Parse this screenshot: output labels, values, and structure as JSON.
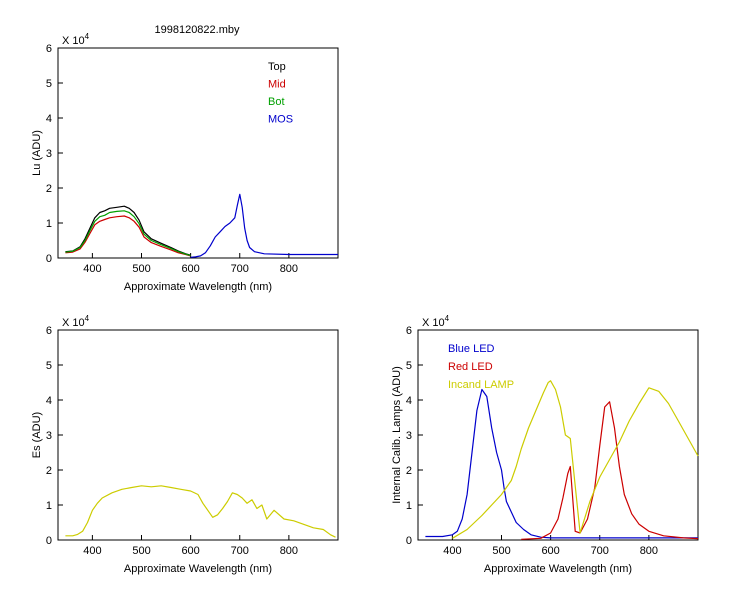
{
  "figure": {
    "title": "1998120822.mby",
    "exponent_base": "X 10",
    "exponent_power": "4"
  },
  "colors": {
    "top": "#000000",
    "mid": "#cc0000",
    "bot": "#00a000",
    "mos": "#0000cc",
    "blue_led": "#0000cc",
    "red_led": "#cc0000",
    "incand": "#cccc00",
    "es": "#cccc00"
  },
  "chart_data": [
    {
      "id": "lu",
      "type": "line",
      "xlabel": "Approximate Wavelength (nm)",
      "ylabel": "Lu (ADU)",
      "xlim": [
        330,
        900
      ],
      "ylim": [
        0,
        6
      ],
      "y_scale_label": "x10^4",
      "xticks": [
        400,
        500,
        600,
        700,
        800
      ],
      "yticks": [
        0,
        1,
        2,
        3,
        4,
        5,
        6
      ],
      "legend": "top-right",
      "series": [
        {
          "name": "Top",
          "color_key": "top",
          "x": [
            345,
            360,
            375,
            385,
            395,
            405,
            415,
            425,
            435,
            450,
            465,
            475,
            485,
            495,
            505,
            520,
            540,
            560,
            575,
            590,
            600
          ],
          "y": [
            0.18,
            0.2,
            0.32,
            0.55,
            0.85,
            1.15,
            1.3,
            1.35,
            1.42,
            1.45,
            1.48,
            1.42,
            1.3,
            1.08,
            0.75,
            0.55,
            0.42,
            0.3,
            0.2,
            0.12,
            0.08
          ]
        },
        {
          "name": "Mid",
          "color_key": "mid",
          "x": [
            345,
            360,
            375,
            385,
            395,
            405,
            415,
            425,
            435,
            450,
            465,
            475,
            485,
            495,
            505,
            520,
            540,
            560,
            575,
            590,
            600
          ],
          "y": [
            0.15,
            0.17,
            0.26,
            0.45,
            0.7,
            0.95,
            1.05,
            1.1,
            1.15,
            1.18,
            1.2,
            1.15,
            1.05,
            0.88,
            0.6,
            0.44,
            0.33,
            0.23,
            0.15,
            0.1,
            0.06
          ]
        },
        {
          "name": "Bot",
          "color_key": "bot",
          "x": [
            345,
            360,
            375,
            385,
            395,
            405,
            415,
            425,
            435,
            450,
            465,
            475,
            485,
            495,
            505,
            520,
            540,
            560,
            575,
            590,
            600
          ],
          "y": [
            0.17,
            0.19,
            0.3,
            0.5,
            0.78,
            1.05,
            1.18,
            1.22,
            1.3,
            1.33,
            1.35,
            1.3,
            1.18,
            0.98,
            0.68,
            0.5,
            0.38,
            0.27,
            0.18,
            0.11,
            0.07
          ]
        },
        {
          "name": "MOS",
          "color_key": "mos",
          "x": [
            600,
            610,
            620,
            630,
            640,
            650,
            660,
            670,
            680,
            690,
            695,
            700,
            705,
            710,
            715,
            720,
            730,
            750,
            800,
            850,
            900
          ],
          "y": [
            0.02,
            0.03,
            0.06,
            0.15,
            0.35,
            0.6,
            0.75,
            0.9,
            1.0,
            1.15,
            1.5,
            1.82,
            1.45,
            0.85,
            0.5,
            0.3,
            0.18,
            0.12,
            0.1,
            0.1,
            0.1
          ]
        }
      ]
    },
    {
      "id": "es",
      "type": "line",
      "xlabel": "Approximate Wavelength (nm)",
      "ylabel": "Es (ADU)",
      "xlim": [
        330,
        900
      ],
      "ylim": [
        0,
        6
      ],
      "y_scale_label": "x10^4",
      "xticks": [
        400,
        500,
        600,
        700,
        800
      ],
      "yticks": [
        0,
        1,
        2,
        3,
        4,
        5,
        6
      ],
      "series": [
        {
          "name": "",
          "color_key": "es",
          "x": [
            345,
            360,
            370,
            380,
            390,
            400,
            410,
            420,
            440,
            460,
            480,
            500,
            520,
            540,
            560,
            580,
            600,
            615,
            625,
            635,
            645,
            655,
            665,
            675,
            685,
            695,
            705,
            715,
            725,
            735,
            745,
            755,
            770,
            790,
            810,
            830,
            850,
            870,
            885,
            895
          ],
          "y": [
            0.12,
            0.12,
            0.16,
            0.25,
            0.5,
            0.85,
            1.05,
            1.2,
            1.35,
            1.45,
            1.5,
            1.55,
            1.52,
            1.55,
            1.5,
            1.45,
            1.4,
            1.3,
            1.05,
            0.85,
            0.65,
            0.72,
            0.9,
            1.1,
            1.35,
            1.3,
            1.2,
            1.05,
            1.15,
            0.9,
            1.0,
            0.6,
            0.85,
            0.6,
            0.55,
            0.45,
            0.35,
            0.3,
            0.15,
            0.08
          ]
        }
      ]
    },
    {
      "id": "calib",
      "type": "line",
      "xlabel": "Approximate Wavelength (nm)",
      "ylabel": "Internal Calib. Lamps (ADU)",
      "xlim": [
        330,
        900
      ],
      "ylim": [
        0,
        6
      ],
      "y_scale_label": "x10^4",
      "xticks": [
        400,
        500,
        600,
        700,
        800
      ],
      "yticks": [
        0,
        1,
        2,
        3,
        4,
        5,
        6
      ],
      "legend": "top-left",
      "series": [
        {
          "name": "Blue LED",
          "color_key": "blue_led",
          "x": [
            345,
            380,
            400,
            410,
            420,
            430,
            440,
            450,
            460,
            470,
            480,
            490,
            500,
            505,
            510,
            520,
            530,
            545,
            560,
            580,
            600,
            640,
            700,
            800,
            900
          ],
          "y": [
            0.1,
            0.1,
            0.15,
            0.25,
            0.6,
            1.3,
            2.5,
            3.7,
            4.3,
            4.1,
            3.2,
            2.5,
            2.0,
            1.5,
            1.1,
            0.8,
            0.5,
            0.3,
            0.15,
            0.08,
            0.06,
            0.06,
            0.06,
            0.06,
            0.06
          ]
        },
        {
          "name": "Red LED",
          "color_key": "red_led",
          "x": [
            540,
            580,
            600,
            615,
            625,
            635,
            640,
            650,
            660,
            675,
            690,
            700,
            710,
            720,
            730,
            740,
            750,
            765,
            780,
            800,
            830,
            870,
            900
          ],
          "y": [
            0.02,
            0.05,
            0.2,
            0.6,
            1.2,
            1.9,
            2.1,
            0.25,
            0.2,
            0.6,
            1.5,
            2.7,
            3.8,
            3.95,
            3.2,
            2.1,
            1.3,
            0.75,
            0.45,
            0.25,
            0.12,
            0.06,
            0.04
          ]
        },
        {
          "name": "Incand LAMP",
          "color_key": "incand",
          "x": [
            400,
            430,
            460,
            480,
            500,
            510,
            520,
            530,
            540,
            555,
            570,
            585,
            595,
            600,
            610,
            620,
            630,
            640,
            660,
            680,
            700,
            720,
            740,
            760,
            780,
            800,
            820,
            840,
            860,
            880,
            900
          ],
          "y": [
            0.05,
            0.3,
            0.7,
            1.0,
            1.3,
            1.5,
            1.7,
            2.1,
            2.6,
            3.2,
            3.7,
            4.2,
            4.5,
            4.55,
            4.3,
            3.8,
            3.0,
            2.9,
            0.2,
            1.1,
            1.8,
            2.3,
            2.8,
            3.4,
            3.9,
            4.35,
            4.25,
            3.9,
            3.4,
            2.9,
            2.4
          ]
        }
      ]
    }
  ]
}
